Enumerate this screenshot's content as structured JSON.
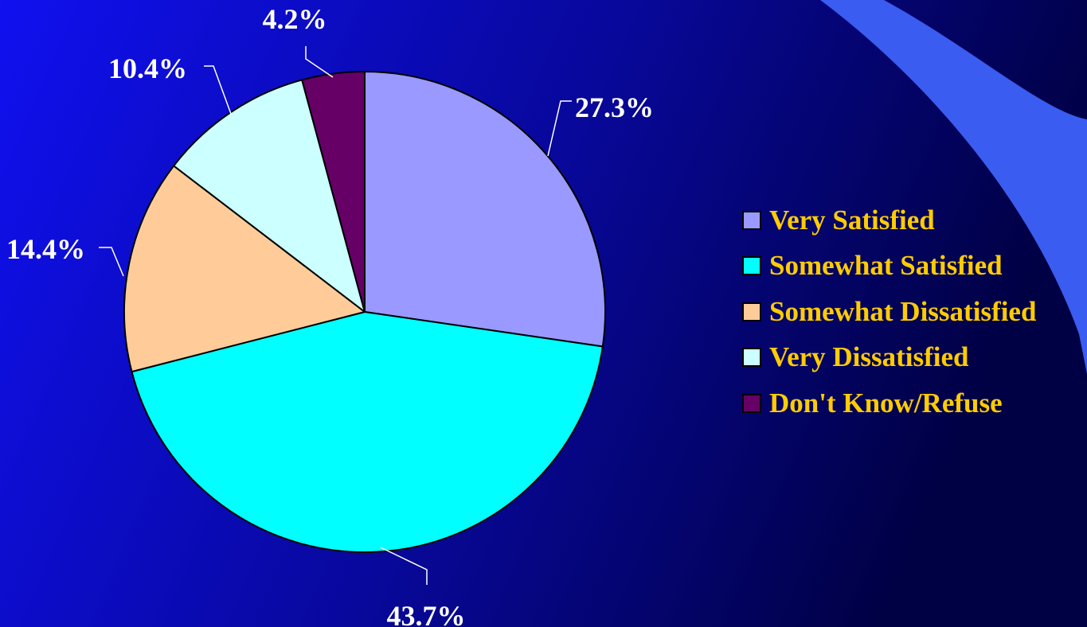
{
  "colors": {
    "background_left": "#1010f0",
    "background_right": "#000044",
    "accent_swoosh": "#3a5cf0",
    "label_color": "#ffffff",
    "legend_text_color": "#ffcc00",
    "slice_outline": "#000000"
  },
  "chart_data": {
    "type": "pie",
    "title": "",
    "legend_position": "right",
    "start_angle_deg": 0,
    "direction": "clockwise",
    "categories": [
      "Very Satisfied",
      "Somewhat Satisfied",
      "Somewhat Dissatisfied",
      "Very Dissatisfied",
      "Don't Know/Refuse"
    ],
    "values": [
      27.3,
      43.7,
      14.4,
      10.4,
      4.2
    ],
    "data_labels": [
      "27.3%",
      "43.7%",
      "14.4%",
      "10.4%",
      "4.2%"
    ],
    "colors": [
      "#9999ff",
      "#00ffff",
      "#ffcc99",
      "#ccffff",
      "#660066"
    ]
  }
}
